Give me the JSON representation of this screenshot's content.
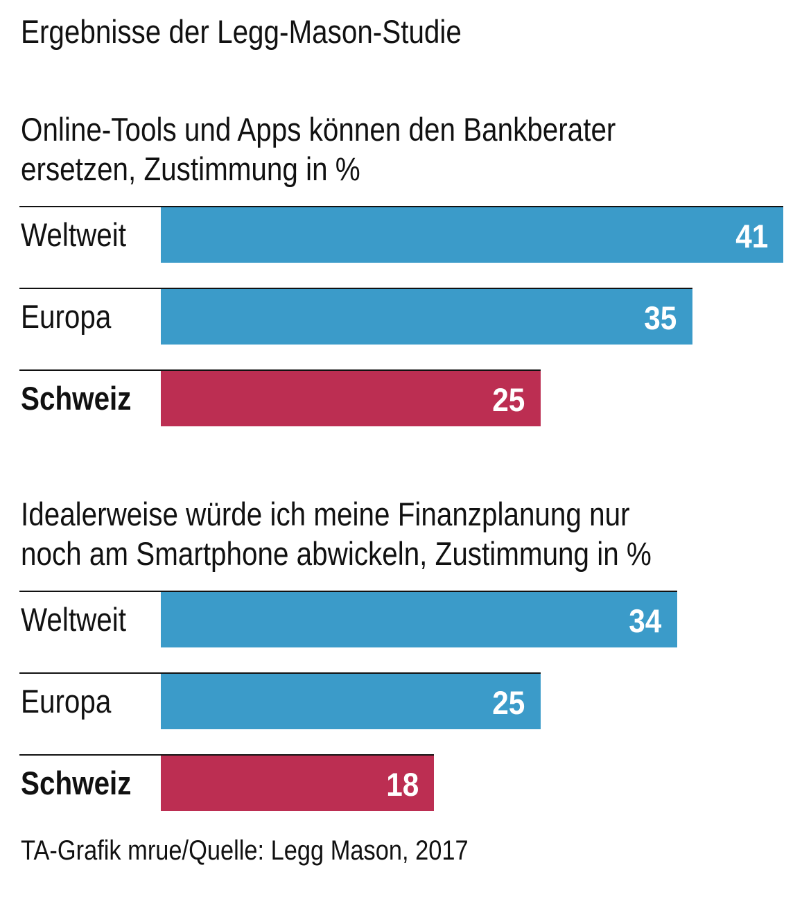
{
  "title": "Ergebnisse der Legg-Mason-Studie",
  "footnote": "TA-Grafik mrue/Quelle: Legg Mason, 2017",
  "colors": {
    "region": "#3b9bc9",
    "highlight": "#bc2e52"
  },
  "chart_data": [
    {
      "type": "bar",
      "title_lines": [
        "Online-Tools und Apps können den Bankberater",
        "ersetzen, Zustimmung in %"
      ],
      "categories": [
        "Weltweit",
        "Europa",
        "Schweiz"
      ],
      "values": [
        41,
        35,
        25
      ],
      "highlight": "Schweiz",
      "xlim": [
        0,
        41
      ]
    },
    {
      "type": "bar",
      "title_lines": [
        "Idealerweise würde ich meine Finanzplanung nur",
        "noch am Smartphone abwickeln, Zustimmung in %"
      ],
      "categories": [
        "Weltweit",
        "Europa",
        "Schweiz"
      ],
      "values": [
        34,
        25,
        18
      ],
      "highlight": "Schweiz",
      "xlim": [
        0,
        41
      ]
    }
  ]
}
